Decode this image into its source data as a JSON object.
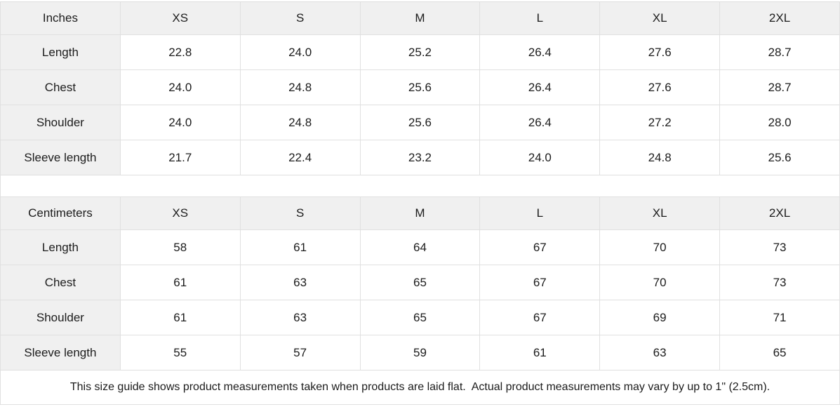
{
  "colors": {
    "header_background": "#f0f0f0",
    "border": "#e0e0e0",
    "text": "#1c1c1c"
  },
  "tables": [
    {
      "unit_label": "Inches",
      "columns": [
        "XS",
        "S",
        "M",
        "L",
        "XL",
        "2XL"
      ],
      "rows": [
        {
          "label": "Length",
          "values": [
            "22.8",
            "24.0",
            "25.2",
            "26.4",
            "27.6",
            "28.7"
          ]
        },
        {
          "label": "Chest",
          "values": [
            "24.0",
            "24.8",
            "25.6",
            "26.4",
            "27.6",
            "28.7"
          ]
        },
        {
          "label": "Shoulder",
          "values": [
            "24.0",
            "24.8",
            "25.6",
            "26.4",
            "27.2",
            "28.0"
          ]
        },
        {
          "label": "Sleeve length",
          "values": [
            "21.7",
            "22.4",
            "23.2",
            "24.0",
            "24.8",
            "25.6"
          ]
        }
      ]
    },
    {
      "unit_label": "Centimeters",
      "columns": [
        "XS",
        "S",
        "M",
        "L",
        "XL",
        "2XL"
      ],
      "rows": [
        {
          "label": "Length",
          "values": [
            "58",
            "61",
            "64",
            "67",
            "70",
            "73"
          ]
        },
        {
          "label": "Chest",
          "values": [
            "61",
            "63",
            "65",
            "67",
            "70",
            "73"
          ]
        },
        {
          "label": "Shoulder",
          "values": [
            "61",
            "63",
            "65",
            "67",
            "69",
            "71"
          ]
        },
        {
          "label": "Sleeve length",
          "values": [
            "55",
            "57",
            "59",
            "61",
            "63",
            "65"
          ]
        }
      ]
    }
  ],
  "footer_note": "This size guide shows product measurements taken when products are laid flat.  Actual product measurements may vary by up to 1\" (2.5cm)."
}
